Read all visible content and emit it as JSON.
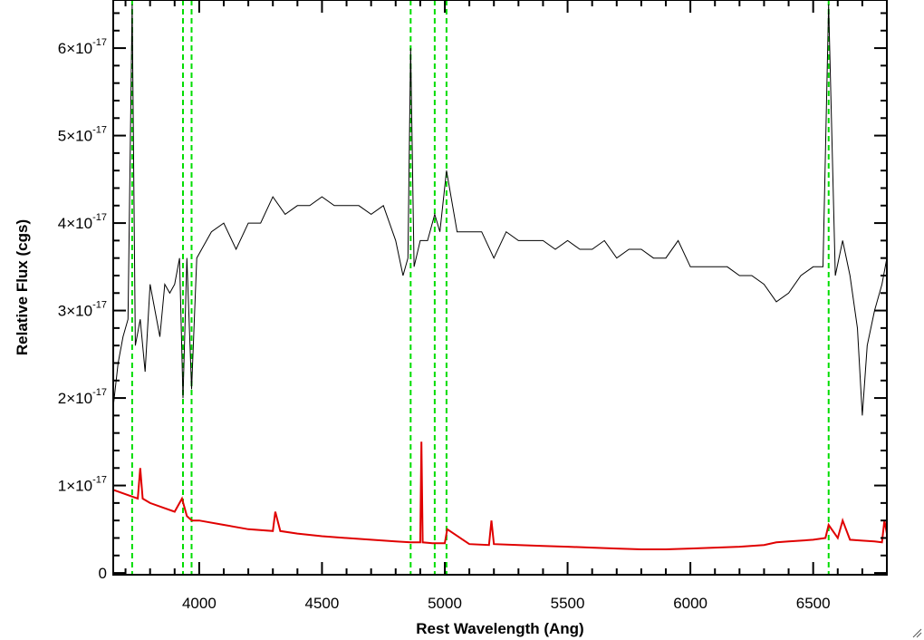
{
  "chart_data": {
    "type": "line",
    "xlabel": "Rest Wavelength (Ang)",
    "ylabel": "Relative Flux (cgs)",
    "xlim": [
      3650,
      6800
    ],
    "ylim": [
      -2e-19,
      6.55e-17
    ],
    "x_ticks": [
      {
        "value": 4000,
        "label": "4000"
      },
      {
        "value": 4500,
        "label": "4500"
      },
      {
        "value": 5000,
        "label": "5000"
      },
      {
        "value": 5500,
        "label": "5500"
      },
      {
        "value": 6000,
        "label": "6000"
      },
      {
        "value": 6500,
        "label": "6500"
      }
    ],
    "y_ticks": [
      {
        "value": 0,
        "mant": "0",
        "exp": ""
      },
      {
        "value": 1e-17,
        "mant": "1×10",
        "exp": "-17"
      },
      {
        "value": 2e-17,
        "mant": "2×10",
        "exp": "-17"
      },
      {
        "value": 3e-17,
        "mant": "3×10",
        "exp": "-17"
      },
      {
        "value": 4e-17,
        "mant": "4×10",
        "exp": "-17"
      },
      {
        "value": 5e-17,
        "mant": "5×10",
        "exp": "-17"
      },
      {
        "value": 6e-17,
        "mant": "6×10",
        "exp": "-17"
      }
    ],
    "vlines": [
      3727,
      3934,
      3969,
      4861,
      4959,
      5007,
      6563
    ],
    "series": [
      {
        "color": "#000000",
        "x": [
          3650,
          3670,
          3690,
          3710,
          3727,
          3740,
          3760,
          3780,
          3800,
          3820,
          3840,
          3860,
          3880,
          3900,
          3920,
          3934,
          3950,
          3969,
          3990,
          4010,
          4050,
          4100,
          4150,
          4200,
          4250,
          4300,
          4350,
          4400,
          4450,
          4500,
          4550,
          4600,
          4650,
          4700,
          4750,
          4800,
          4830,
          4850,
          4861,
          4875,
          4900,
          4930,
          4959,
          4980,
          5007,
          5050,
          5100,
          5150,
          5200,
          5250,
          5300,
          5350,
          5400,
          5450,
          5500,
          5550,
          5600,
          5650,
          5700,
          5750,
          5800,
          5850,
          5900,
          5950,
          6000,
          6050,
          6100,
          6150,
          6200,
          6250,
          6300,
          6350,
          6400,
          6450,
          6500,
          6540,
          6563,
          6590,
          6620,
          6650,
          6680,
          6700,
          6720,
          6750,
          6780,
          6800
        ],
        "y": [
          1.9e-17,
          2.4e-17,
          2.7e-17,
          2.9e-17,
          6.5e-17,
          2.6e-17,
          2.9e-17,
          2.3e-17,
          3.3e-17,
          3e-17,
          2.7e-17,
          3.3e-17,
          3.2e-17,
          3.3e-17,
          3.6e-17,
          2e-17,
          3.6e-17,
          2.1e-17,
          3.6e-17,
          3.7e-17,
          3.9e-17,
          4e-17,
          3.7e-17,
          4e-17,
          4e-17,
          4.3e-17,
          4.1e-17,
          4.2e-17,
          4.2e-17,
          4.3e-17,
          4.2e-17,
          4.2e-17,
          4.2e-17,
          4.1e-17,
          4.2e-17,
          3.8e-17,
          3.4e-17,
          3.6e-17,
          6e-17,
          3.5e-17,
          3.8e-17,
          3.8e-17,
          4.1e-17,
          3.9e-17,
          4.6e-17,
          3.9e-17,
          3.9e-17,
          3.9e-17,
          3.6e-17,
          3.9e-17,
          3.8e-17,
          3.8e-17,
          3.8e-17,
          3.7e-17,
          3.8e-17,
          3.7e-17,
          3.7e-17,
          3.8e-17,
          3.6e-17,
          3.7e-17,
          3.7e-17,
          3.6e-17,
          3.6e-17,
          3.8e-17,
          3.5e-17,
          3.5e-17,
          3.5e-17,
          3.5e-17,
          3.4e-17,
          3.4e-17,
          3.3e-17,
          3.1e-17,
          3.2e-17,
          3.4e-17,
          3.5e-17,
          3.5e-17,
          6.5e-17,
          3.4e-17,
          3.8e-17,
          3.4e-17,
          2.8e-17,
          1.8e-17,
          2.6e-17,
          3e-17,
          3.3e-17,
          3.6e-17
        ]
      },
      {
        "color": "#e00000",
        "x": [
          3650,
          3700,
          3750,
          3760,
          3770,
          3800,
          3850,
          3900,
          3930,
          3950,
          3970,
          4000,
          4100,
          4200,
          4300,
          4310,
          4330,
          4400,
          4500,
          4600,
          4700,
          4800,
          4861,
          4900,
          4905,
          4910,
          4950,
          5000,
          5010,
          5100,
          5180,
          5190,
          5200,
          5300,
          5400,
          5500,
          5600,
          5700,
          5800,
          5850,
          5900,
          6000,
          6100,
          6200,
          6300,
          6350,
          6400,
          6450,
          6500,
          6550,
          6563,
          6600,
          6620,
          6650,
          6700,
          6750,
          6780,
          6790,
          6800
        ],
        "y": [
          9.5e-18,
          9e-18,
          8.5e-18,
          1.2e-17,
          8.5e-18,
          8e-18,
          7.5e-18,
          7e-18,
          8.5e-18,
          6.5e-18,
          6e-18,
          6e-18,
          5.5e-18,
          5e-18,
          4.8e-18,
          7e-18,
          4.8e-18,
          4.5e-18,
          4.2e-18,
          4e-18,
          3.8e-18,
          3.6e-18,
          3.5e-18,
          3.5e-18,
          1.5e-17,
          3.5e-18,
          3.4e-18,
          3.4e-18,
          5e-18,
          3.3e-18,
          3.2e-18,
          6e-18,
          3.3e-18,
          3.2e-18,
          3.1e-18,
          3e-18,
          2.9e-18,
          2.8e-18,
          2.7e-18,
          2.7e-18,
          2.7e-18,
          2.8e-18,
          2.9e-18,
          3e-18,
          3.2e-18,
          3.5e-18,
          3.6e-18,
          3.7e-18,
          3.8e-18,
          4e-18,
          5.5e-18,
          4e-18,
          6e-18,
          3.8e-18,
          3.7e-18,
          3.6e-18,
          3.5e-18,
          6e-18,
          4.5e-18
        ]
      }
    ]
  },
  "colors": {
    "frame": "#000000",
    "vline": "#00dd00"
  }
}
